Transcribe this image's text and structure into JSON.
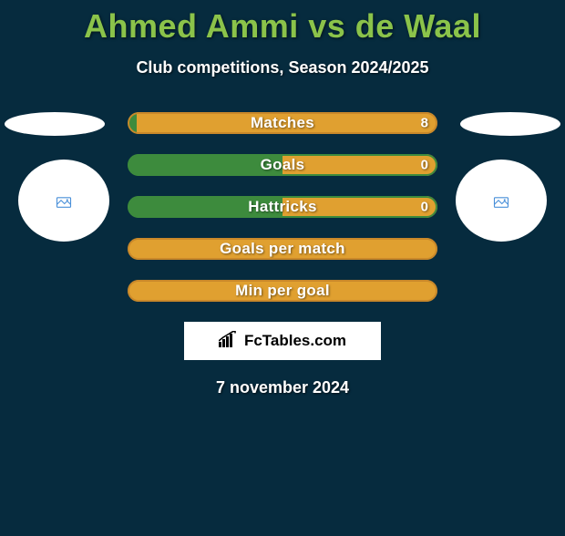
{
  "background_color": "#062b3e",
  "title": {
    "text": "Ahmed Ammi vs de Waal",
    "color": "#8bc34a",
    "fontsize": 36
  },
  "subtitle": {
    "text": "Club competitions, Season 2024/2025",
    "color": "#ffffff",
    "fontsize": 18
  },
  "players": {
    "left": {
      "ellipse_color": "#ffffff",
      "circle_color": "#ffffff",
      "badge_border_color": "#4a90d9"
    },
    "right": {
      "ellipse_color": "#ffffff",
      "circle_color": "#ffffff",
      "badge_border_color": "#4a90d9"
    }
  },
  "bars": {
    "left_color": "#3d8b3d",
    "right_color": "#e0a030",
    "text_color": "#ffffff",
    "label_fontsize": 17,
    "value_fontsize": 15,
    "height": 24,
    "radius": 12,
    "gap": 22,
    "items": [
      {
        "label": "Matches",
        "left_value": "",
        "right_value": "8",
        "left_pct": 3,
        "right_pct": 97,
        "border_color": "#c9882a"
      },
      {
        "label": "Goals",
        "left_value": "",
        "right_value": "0",
        "left_pct": 50,
        "right_pct": 50,
        "border_color": "#3d8b3d"
      },
      {
        "label": "Hattricks",
        "left_value": "",
        "right_value": "0",
        "left_pct": 50,
        "right_pct": 50,
        "border_color": "#3d8b3d"
      },
      {
        "label": "Goals per match",
        "left_value": "",
        "right_value": "",
        "left_pct": 0,
        "right_pct": 100,
        "border_color": "#c9882a"
      },
      {
        "label": "Min per goal",
        "left_value": "",
        "right_value": "",
        "left_pct": 0,
        "right_pct": 100,
        "border_color": "#c9882a"
      }
    ]
  },
  "brand": {
    "text": "FcTables.com",
    "box_background": "#ffffff",
    "text_color": "#000000"
  },
  "date": {
    "text": "7 november 2024",
    "color": "#ffffff",
    "fontsize": 18
  }
}
